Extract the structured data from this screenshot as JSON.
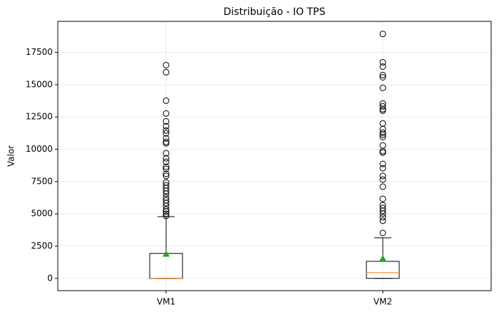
{
  "chart_data": {
    "type": "box",
    "title": "Distribuição - IO TPS",
    "ylabel": "Valor",
    "categories": [
      "VM1",
      "VM2"
    ],
    "boxes": [
      {
        "whislo": 0,
        "q1": 0,
        "med": 0,
        "q3": 1930,
        "whishi": 4780,
        "mean": 1900,
        "fliers": [
          16510,
          15960,
          13760,
          12770,
          12160,
          11780,
          11450,
          11230,
          10840,
          10570,
          10460,
          9690,
          9300,
          9030,
          8640,
          8480,
          8090,
          7930,
          7430,
          7210,
          6990,
          6770,
          6550,
          6270,
          6050,
          5830,
          5610,
          5340,
          5170,
          5010,
          4840
        ]
      },
      {
        "whislo": 0,
        "q1": 0,
        "med": 440,
        "q3": 1320,
        "whishi": 3140,
        "mean": 1540,
        "fliers": [
          18930,
          16730,
          16400,
          15740,
          15570,
          14750,
          13540,
          13320,
          13100,
          12990,
          12000,
          11560,
          11280,
          11120,
          10950,
          10290,
          9850,
          9740,
          8860,
          8530,
          7930,
          7650,
          7100,
          6160,
          5670,
          5450,
          5230,
          5010,
          4730,
          4460,
          3520
        ]
      }
    ],
    "median_color": "#ff7f0e",
    "mean_color": "#2ca02c",
    "ylim": [
      -950,
      19900
    ],
    "yticks": [
      0,
      2500,
      5000,
      7500,
      10000,
      12500,
      15000,
      17500
    ],
    "grid": true
  }
}
